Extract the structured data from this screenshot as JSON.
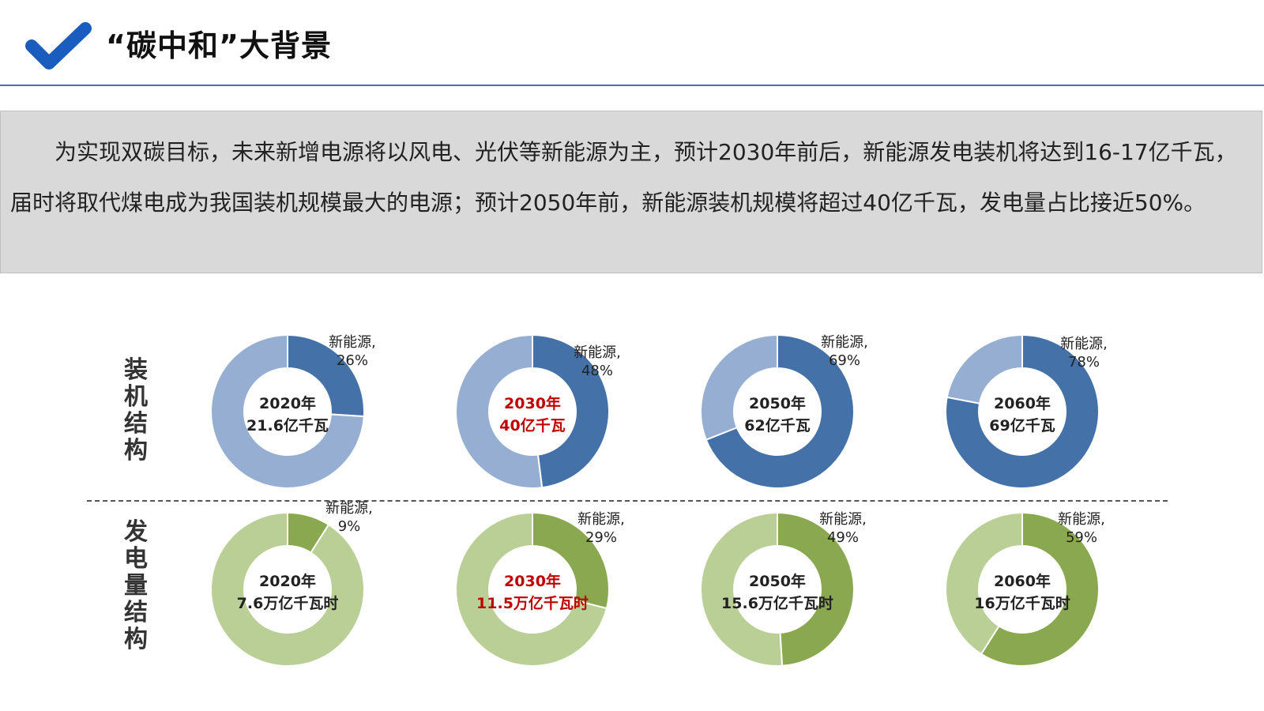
{
  "header": {
    "title": "“碳中和”大背景",
    "icon": "checkmark-icon",
    "accent_color": "#1b5cbf"
  },
  "intro": {
    "text": "为实现双碳目标，未来新增电源将以风电、光伏等新能源为主，预计2030年前后，新能源发电装机将达到16-17亿千瓦，届时将取代煤电成为我国装机规模最大的电源；预计2050年前，新能源装机规模将超过40亿千瓦，发电量占比接近50%。"
  },
  "rows": {
    "capacity_label": "装\n机\n结\n构",
    "generation_label": "发\n电\n量\n结\n构"
  },
  "chart_data": [
    {
      "type": "pie",
      "group": "装机结构",
      "center_lines": [
        "2020年",
        "21.6亿千瓦"
      ],
      "highlight": false,
      "slices": [
        {
          "name": "新能源",
          "value": 26
        },
        {
          "name": "",
          "value": 74
        }
      ],
      "label": [
        "新能源,",
        "26%"
      ],
      "colors": [
        "#4472a8",
        "#97aed3"
      ]
    },
    {
      "type": "pie",
      "group": "装机结构",
      "center_lines": [
        "2030年",
        "40亿千瓦"
      ],
      "highlight": true,
      "slices": [
        {
          "name": "新能源",
          "value": 48
        },
        {
          "name": "",
          "value": 52
        }
      ],
      "label": [
        "新能源,",
        "48%"
      ],
      "colors": [
        "#4472a8",
        "#97aed3"
      ]
    },
    {
      "type": "pie",
      "group": "装机结构",
      "center_lines": [
        "2050年",
        "62亿千瓦"
      ],
      "highlight": false,
      "slices": [
        {
          "name": "新能源",
          "value": 69
        },
        {
          "name": "",
          "value": 31
        }
      ],
      "label": [
        "新能源,",
        "69%"
      ],
      "colors": [
        "#4472a8",
        "#97aed3"
      ]
    },
    {
      "type": "pie",
      "group": "装机结构",
      "center_lines": [
        "2060年",
        "69亿千瓦"
      ],
      "highlight": false,
      "slices": [
        {
          "name": "新能源",
          "value": 78
        },
        {
          "name": "",
          "value": 22
        }
      ],
      "label": [
        "新能源,",
        "78%"
      ],
      "colors": [
        "#4472a8",
        "#97aed3"
      ]
    },
    {
      "type": "pie",
      "group": "发电量结构",
      "center_lines": [
        "2020年",
        "7.6万亿千瓦时"
      ],
      "highlight": false,
      "slices": [
        {
          "name": "新能源",
          "value": 9
        },
        {
          "name": "",
          "value": 91
        }
      ],
      "label": [
        "新能源,",
        "9%"
      ],
      "colors": [
        "#8aa84f",
        "#b9cf95"
      ]
    },
    {
      "type": "pie",
      "group": "发电量结构",
      "center_lines": [
        "2030年",
        "11.5万亿千瓦时"
      ],
      "highlight": true,
      "slices": [
        {
          "name": "新能源",
          "value": 29
        },
        {
          "name": "",
          "value": 71
        }
      ],
      "label": [
        "新能源,",
        "29%"
      ],
      "colors": [
        "#8aa84f",
        "#b9cf95"
      ]
    },
    {
      "type": "pie",
      "group": "发电量结构",
      "center_lines": [
        "2050年",
        "15.6万亿千瓦时"
      ],
      "highlight": false,
      "slices": [
        {
          "name": "新能源",
          "value": 49
        },
        {
          "name": "",
          "value": 51
        }
      ],
      "label": [
        "新能源,",
        "49%"
      ],
      "colors": [
        "#8aa84f",
        "#b9cf95"
      ]
    },
    {
      "type": "pie",
      "group": "发电量结构",
      "center_lines": [
        "2060年",
        "16万亿千瓦时"
      ],
      "highlight": false,
      "slices": [
        {
          "name": "新能源",
          "value": 59
        },
        {
          "name": "",
          "value": 41
        }
      ],
      "label": [
        "新能源,",
        "59%"
      ],
      "colors": [
        "#8aa84f",
        "#b9cf95"
      ]
    }
  ],
  "style": {
    "highlight_color": "#c00000",
    "center_text_color": "#222222"
  }
}
